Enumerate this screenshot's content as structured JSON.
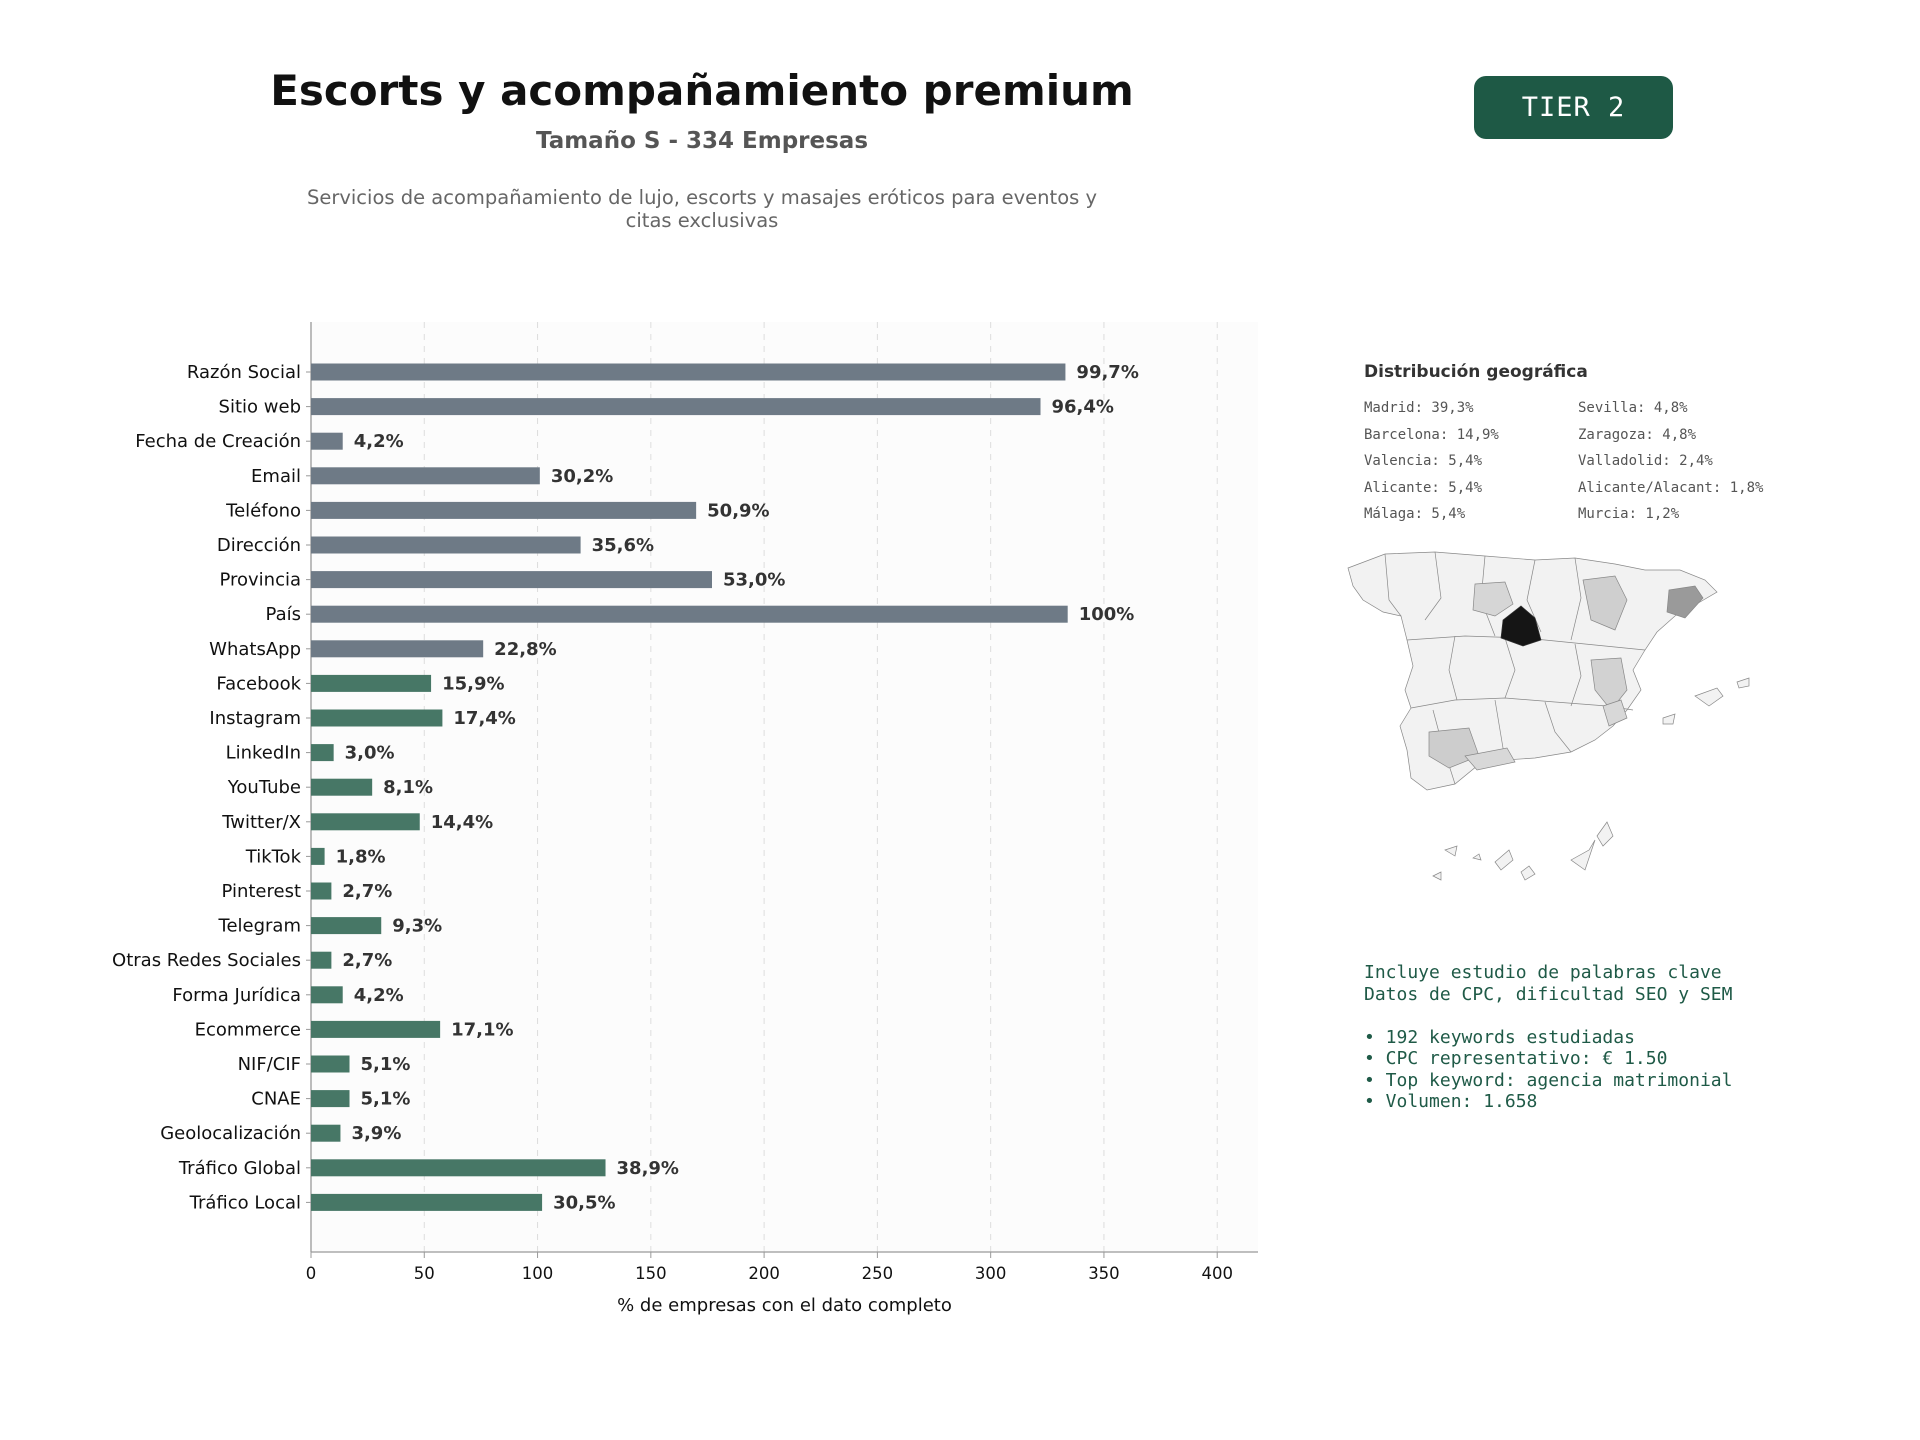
{
  "header": {
    "title": "Escorts y acompañamiento premium",
    "subtitle": "Tamaño S - 334 Empresas",
    "description": "Servicios de acompañamiento de lujo, escorts y masajes eróticos para eventos y citas exclusivas",
    "tier_label": "TIER 2",
    "tier_color": "#1e5945"
  },
  "chart_data": {
    "type": "bar",
    "orientation": "horizontal",
    "categories": [
      "Razón Social",
      "Sitio web",
      "Fecha de Creación",
      "Email",
      "Teléfono",
      "Dirección",
      "Provincia",
      "País",
      "WhatsApp",
      "Facebook",
      "Instagram",
      "LinkedIn",
      "YouTube",
      "Twitter/X",
      "TikTok",
      "Pinterest",
      "Telegram",
      "Otras Redes Sociales",
      "Forma Jurídica",
      "Ecommerce",
      "NIF/CIF",
      "CNAE",
      "Geolocalización",
      "Tráfico Global",
      "Tráfico Local"
    ],
    "values": [
      333,
      322,
      14,
      101,
      170,
      119,
      177,
      334,
      76,
      53,
      58,
      10,
      27,
      48,
      6,
      9,
      31,
      9,
      14,
      57,
      17,
      17,
      13,
      130,
      102
    ],
    "labels": [
      "99,7%",
      "96,4%",
      "4,2%",
      "30,2%",
      "50,9%",
      "35,6%",
      "53,0%",
      "100%",
      "22,8%",
      "15,9%",
      "17,4%",
      "3,0%",
      "8,1%",
      "14,4%",
      "1,8%",
      "2,7%",
      "9,3%",
      "2,7%",
      "4,2%",
      "17,1%",
      "5,1%",
      "5,1%",
      "3,9%",
      "38,9%",
      "30,5%"
    ],
    "bar_groups": [
      "basic",
      "basic",
      "basic",
      "basic",
      "basic",
      "basic",
      "basic",
      "basic",
      "basic",
      "social",
      "social",
      "social",
      "social",
      "social",
      "social",
      "social",
      "social",
      "social",
      "social",
      "social",
      "social",
      "social",
      "social",
      "social",
      "social"
    ],
    "colors": {
      "basic": "#6e7a86",
      "social": "#477766"
    },
    "xlabel": "% de empresas con el dato completo",
    "xlim": [
      0,
      418
    ],
    "xticks": [
      0,
      50,
      100,
      150,
      200,
      250,
      300,
      350,
      400
    ],
    "grid": true
  },
  "geo": {
    "title": "Distribución geográfica",
    "left_items": [
      "Madrid: 39,3%",
      "Barcelona: 14,9%",
      "Valencia: 5,4%",
      "Alicante: 5,4%",
      "Málaga: 5,4%"
    ],
    "right_items": [
      "Sevilla: 4,8%",
      "Zaragoza: 4,8%",
      "Valladolid: 2,4%",
      "Alicante/Alacant: 1,8%",
      "Murcia: 1,2%"
    ]
  },
  "keywords": {
    "intro_line1": "Incluye estudio de palabras clave",
    "intro_line2": "Datos de CPC, dificultad SEO y SEM",
    "bullet1": "• 192 keywords estudiadas",
    "bullet2": "• CPC representativo: € 1.50",
    "bullet3": "• Top keyword: agencia matrimonial",
    "bullet4": "• Volumen: 1.658"
  }
}
